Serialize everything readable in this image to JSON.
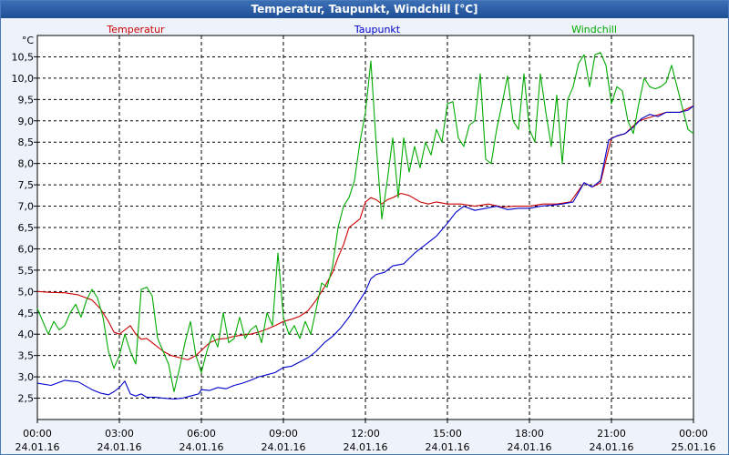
{
  "window": {
    "title": "Temperatur, Taupunkt, Windchill [°C]"
  },
  "chart_data": {
    "type": "line",
    "title": "Temperatur, Taupunkt, Windchill [°C]",
    "ylabel": "°C",
    "xlabel": "",
    "ylim": [
      2.0,
      11.0
    ],
    "y_ticks": [
      "2,5",
      "3,0",
      "3,5",
      "4,0",
      "4,5",
      "5,0",
      "5,5",
      "6,0",
      "6,5",
      "7,0",
      "7,5",
      "8,0",
      "8,5",
      "9,0",
      "9,5",
      "10,0",
      "10,5"
    ],
    "y_tick_values": [
      2.5,
      3.0,
      3.5,
      4.0,
      4.5,
      5.0,
      5.5,
      6.0,
      6.5,
      7.0,
      7.5,
      8.0,
      8.5,
      9.0,
      9.5,
      10.0,
      10.5
    ],
    "xlim_hours": [
      0,
      24
    ],
    "x_ticks": [
      {
        "time": "00:00",
        "date": "24.01.16"
      },
      {
        "time": "03:00",
        "date": "24.01.16"
      },
      {
        "time": "06:00",
        "date": "24.01.16"
      },
      {
        "time": "09:00",
        "date": "24.01.16"
      },
      {
        "time": "12:00",
        "date": "24.01.16"
      },
      {
        "time": "15:00",
        "date": "24.01.16"
      },
      {
        "time": "18:00",
        "date": "24.01.16"
      },
      {
        "time": "21:00",
        "date": "24.01.16"
      },
      {
        "time": "00:00",
        "date": "25.01.16"
      }
    ],
    "grid": true,
    "legend_placement": "top",
    "series": [
      {
        "name": "Temperatur",
        "color": "#cc0000",
        "points": [
          [
            0,
            5.0
          ],
          [
            0.5,
            4.98
          ],
          [
            1,
            4.97
          ],
          [
            1.5,
            4.92
          ],
          [
            2,
            4.8
          ],
          [
            2.3,
            4.6
          ],
          [
            2.6,
            4.3
          ],
          [
            2.8,
            4.05
          ],
          [
            3.0,
            4.0
          ],
          [
            3.2,
            4.1
          ],
          [
            3.4,
            4.2
          ],
          [
            3.6,
            4.0
          ],
          [
            3.8,
            3.88
          ],
          [
            4.0,
            3.9
          ],
          [
            4.3,
            3.75
          ],
          [
            4.6,
            3.6
          ],
          [
            4.9,
            3.5
          ],
          [
            5.2,
            3.45
          ],
          [
            5.5,
            3.4
          ],
          [
            5.8,
            3.5
          ],
          [
            6.0,
            3.62
          ],
          [
            6.3,
            3.8
          ],
          [
            6.6,
            3.88
          ],
          [
            6.9,
            3.9
          ],
          [
            7.2,
            3.95
          ],
          [
            7.5,
            3.98
          ],
          [
            7.8,
            4.0
          ],
          [
            8.1,
            4.05
          ],
          [
            8.4,
            4.12
          ],
          [
            8.7,
            4.2
          ],
          [
            9.0,
            4.3
          ],
          [
            9.3,
            4.35
          ],
          [
            9.6,
            4.42
          ],
          [
            9.9,
            4.55
          ],
          [
            10.2,
            4.8
          ],
          [
            10.5,
            5.1
          ],
          [
            10.8,
            5.45
          ],
          [
            11.0,
            5.8
          ],
          [
            11.2,
            6.1
          ],
          [
            11.4,
            6.5
          ],
          [
            11.6,
            6.6
          ],
          [
            11.8,
            6.7
          ],
          [
            12.0,
            7.1
          ],
          [
            12.2,
            7.2
          ],
          [
            12.4,
            7.15
          ],
          [
            12.6,
            7.05
          ],
          [
            12.8,
            7.15
          ],
          [
            13.0,
            7.2
          ],
          [
            13.3,
            7.3
          ],
          [
            13.6,
            7.25
          ],
          [
            14.0,
            7.1
          ],
          [
            14.3,
            7.05
          ],
          [
            14.6,
            7.1
          ],
          [
            15.0,
            7.05
          ],
          [
            15.5,
            7.05
          ],
          [
            16.0,
            7.0
          ],
          [
            16.5,
            7.05
          ],
          [
            17.0,
            6.98
          ],
          [
            17.5,
            7.0
          ],
          [
            18.0,
            7.0
          ],
          [
            18.5,
            7.05
          ],
          [
            19.0,
            7.05
          ],
          [
            19.5,
            7.1
          ],
          [
            20.0,
            7.55
          ],
          [
            20.3,
            7.45
          ],
          [
            20.6,
            7.55
          ],
          [
            21.0,
            8.6
          ],
          [
            21.5,
            8.7
          ],
          [
            22.0,
            9.0
          ],
          [
            22.5,
            9.1
          ],
          [
            23.0,
            9.2
          ],
          [
            23.5,
            9.2
          ],
          [
            24.0,
            9.35
          ]
        ]
      },
      {
        "name": "Taupunkt",
        "color": "#0000cc",
        "points": [
          [
            0,
            2.85
          ],
          [
            0.5,
            2.8
          ],
          [
            1,
            2.92
          ],
          [
            1.5,
            2.88
          ],
          [
            2,
            2.7
          ],
          [
            2.3,
            2.62
          ],
          [
            2.6,
            2.58
          ],
          [
            2.8,
            2.65
          ],
          [
            3.0,
            2.75
          ],
          [
            3.2,
            2.9
          ],
          [
            3.4,
            2.6
          ],
          [
            3.6,
            2.55
          ],
          [
            3.8,
            2.6
          ],
          [
            4.0,
            2.52
          ],
          [
            4.3,
            2.52
          ],
          [
            4.6,
            2.5
          ],
          [
            5.0,
            2.48
          ],
          [
            5.3,
            2.5
          ],
          [
            5.6,
            2.55
          ],
          [
            5.9,
            2.6
          ],
          [
            6.0,
            2.7
          ],
          [
            6.3,
            2.68
          ],
          [
            6.6,
            2.75
          ],
          [
            6.9,
            2.72
          ],
          [
            7.2,
            2.8
          ],
          [
            7.5,
            2.85
          ],
          [
            7.8,
            2.92
          ],
          [
            8.1,
            3.0
          ],
          [
            8.4,
            3.05
          ],
          [
            8.7,
            3.1
          ],
          [
            9.0,
            3.22
          ],
          [
            9.3,
            3.25
          ],
          [
            9.6,
            3.35
          ],
          [
            9.9,
            3.45
          ],
          [
            10.2,
            3.6
          ],
          [
            10.5,
            3.8
          ],
          [
            10.8,
            3.95
          ],
          [
            11.1,
            4.15
          ],
          [
            11.4,
            4.4
          ],
          [
            11.7,
            4.7
          ],
          [
            12.0,
            5.0
          ],
          [
            12.2,
            5.3
          ],
          [
            12.4,
            5.4
          ],
          [
            12.7,
            5.45
          ],
          [
            13.0,
            5.6
          ],
          [
            13.4,
            5.65
          ],
          [
            13.8,
            5.9
          ],
          [
            14.2,
            6.1
          ],
          [
            14.6,
            6.3
          ],
          [
            15.0,
            6.6
          ],
          [
            15.3,
            6.85
          ],
          [
            15.6,
            7.0
          ],
          [
            16.0,
            6.9
          ],
          [
            16.4,
            6.95
          ],
          [
            16.8,
            7.0
          ],
          [
            17.2,
            6.92
          ],
          [
            17.6,
            6.95
          ],
          [
            18.0,
            6.95
          ],
          [
            18.4,
            7.0
          ],
          [
            18.8,
            7.02
          ],
          [
            19.2,
            7.05
          ],
          [
            19.6,
            7.1
          ],
          [
            20.0,
            7.55
          ],
          [
            20.3,
            7.45
          ],
          [
            20.6,
            7.6
          ],
          [
            20.9,
            8.55
          ],
          [
            21.2,
            8.65
          ],
          [
            21.5,
            8.7
          ],
          [
            21.8,
            8.85
          ],
          [
            22.1,
            9.05
          ],
          [
            22.4,
            9.15
          ],
          [
            22.7,
            9.1
          ],
          [
            23.0,
            9.2
          ],
          [
            23.5,
            9.2
          ],
          [
            23.8,
            9.25
          ],
          [
            24.0,
            9.35
          ]
        ]
      },
      {
        "name": "Windchill",
        "color": "#00aa00",
        "points": [
          [
            0,
            4.6
          ],
          [
            0.2,
            4.3
          ],
          [
            0.4,
            4.0
          ],
          [
            0.6,
            4.3
          ],
          [
            0.8,
            4.1
          ],
          [
            1.0,
            4.2
          ],
          [
            1.2,
            4.5
          ],
          [
            1.4,
            4.7
          ],
          [
            1.6,
            4.4
          ],
          [
            1.8,
            4.8
          ],
          [
            2.0,
            5.05
          ],
          [
            2.2,
            4.85
          ],
          [
            2.4,
            4.4
          ],
          [
            2.6,
            3.6
          ],
          [
            2.8,
            3.2
          ],
          [
            3.0,
            3.5
          ],
          [
            3.2,
            4.0
          ],
          [
            3.4,
            3.6
          ],
          [
            3.6,
            3.3
          ],
          [
            3.8,
            5.05
          ],
          [
            4.0,
            5.1
          ],
          [
            4.2,
            4.9
          ],
          [
            4.4,
            3.9
          ],
          [
            4.6,
            3.6
          ],
          [
            4.8,
            3.3
          ],
          [
            5.0,
            2.65
          ],
          [
            5.2,
            3.2
          ],
          [
            5.4,
            3.8
          ],
          [
            5.6,
            4.3
          ],
          [
            5.8,
            3.5
          ],
          [
            6.0,
            3.1
          ],
          [
            6.2,
            3.6
          ],
          [
            6.4,
            4.0
          ],
          [
            6.6,
            3.7
          ],
          [
            6.8,
            4.5
          ],
          [
            7.0,
            3.8
          ],
          [
            7.2,
            3.9
          ],
          [
            7.4,
            4.4
          ],
          [
            7.6,
            3.9
          ],
          [
            7.8,
            4.1
          ],
          [
            8.0,
            4.2
          ],
          [
            8.2,
            3.8
          ],
          [
            8.4,
            4.5
          ],
          [
            8.6,
            4.2
          ],
          [
            8.8,
            5.9
          ],
          [
            9.0,
            4.4
          ],
          [
            9.2,
            4.0
          ],
          [
            9.4,
            4.2
          ],
          [
            9.6,
            3.9
          ],
          [
            9.8,
            4.3
          ],
          [
            10.0,
            4.0
          ],
          [
            10.2,
            4.6
          ],
          [
            10.4,
            5.2
          ],
          [
            10.6,
            5.1
          ],
          [
            10.8,
            5.6
          ],
          [
            11.0,
            6.5
          ],
          [
            11.2,
            7.0
          ],
          [
            11.4,
            7.2
          ],
          [
            11.6,
            7.6
          ],
          [
            11.8,
            8.5
          ],
          [
            12.0,
            9.2
          ],
          [
            12.2,
            10.4
          ],
          [
            12.4,
            8.4
          ],
          [
            12.6,
            6.7
          ],
          [
            12.8,
            7.6
          ],
          [
            13.0,
            8.6
          ],
          [
            13.2,
            7.2
          ],
          [
            13.4,
            8.6
          ],
          [
            13.6,
            7.8
          ],
          [
            13.8,
            8.4
          ],
          [
            14.0,
            7.9
          ],
          [
            14.2,
            8.5
          ],
          [
            14.4,
            8.2
          ],
          [
            14.6,
            8.8
          ],
          [
            14.8,
            8.5
          ],
          [
            15.0,
            9.4
          ],
          [
            15.2,
            9.45
          ],
          [
            15.4,
            8.6
          ],
          [
            15.6,
            8.4
          ],
          [
            15.8,
            8.9
          ],
          [
            16.0,
            9.0
          ],
          [
            16.2,
            10.1
          ],
          [
            16.4,
            8.1
          ],
          [
            16.6,
            8.0
          ],
          [
            16.8,
            8.8
          ],
          [
            17.0,
            9.4
          ],
          [
            17.2,
            10.05
          ],
          [
            17.4,
            9.0
          ],
          [
            17.6,
            8.8
          ],
          [
            17.8,
            10.1
          ],
          [
            18.0,
            8.8
          ],
          [
            18.2,
            8.5
          ],
          [
            18.4,
            10.1
          ],
          [
            18.6,
            9.2
          ],
          [
            18.8,
            8.4
          ],
          [
            19.0,
            9.6
          ],
          [
            19.2,
            8.0
          ],
          [
            19.4,
            9.5
          ],
          [
            19.6,
            9.8
          ],
          [
            19.8,
            10.35
          ],
          [
            20.0,
            10.55
          ],
          [
            20.2,
            9.8
          ],
          [
            20.4,
            10.55
          ],
          [
            20.6,
            10.6
          ],
          [
            20.8,
            10.3
          ],
          [
            21.0,
            9.4
          ],
          [
            21.2,
            9.8
          ],
          [
            21.4,
            9.7
          ],
          [
            21.6,
            9.0
          ],
          [
            21.8,
            8.7
          ],
          [
            22.0,
            9.4
          ],
          [
            22.2,
            10.0
          ],
          [
            22.4,
            9.8
          ],
          [
            22.6,
            9.75
          ],
          [
            22.8,
            9.8
          ],
          [
            23.0,
            9.9
          ],
          [
            23.2,
            10.3
          ],
          [
            23.4,
            9.8
          ],
          [
            23.6,
            9.3
          ],
          [
            23.8,
            8.8
          ],
          [
            24.0,
            8.7
          ]
        ]
      }
    ]
  }
}
